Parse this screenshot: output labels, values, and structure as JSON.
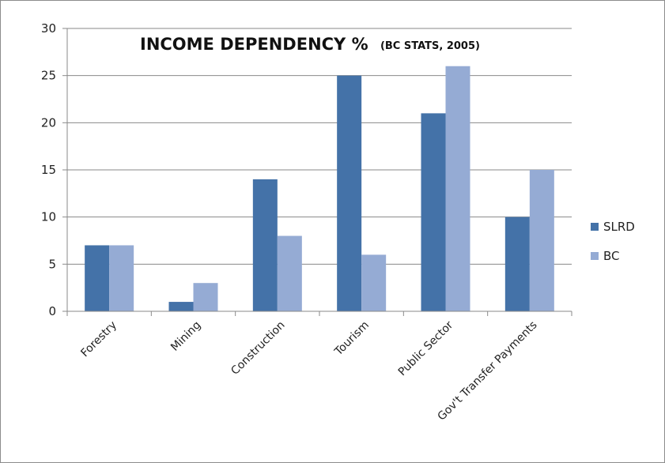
{
  "chart_data": {
    "type": "bar",
    "title": "INCOME DEPENDENCY %",
    "subtitle": "(BC STATS, 2005)",
    "categories": [
      "Forestry",
      "Mining",
      "Construction",
      "Tourism",
      "Public Sector",
      "Gov't Transfer Payments"
    ],
    "series": [
      {
        "name": "SLRD",
        "color": "#4472a8",
        "values": [
          7,
          1,
          14,
          25,
          21,
          10
        ]
      },
      {
        "name": "BC",
        "color": "#95abd4",
        "values": [
          7,
          3,
          8,
          6,
          26,
          15
        ]
      }
    ],
    "ylim": [
      0,
      30
    ],
    "yticks": [
      0,
      5,
      10,
      15,
      20,
      25,
      30
    ],
    "grid": true,
    "legend": "right"
  }
}
